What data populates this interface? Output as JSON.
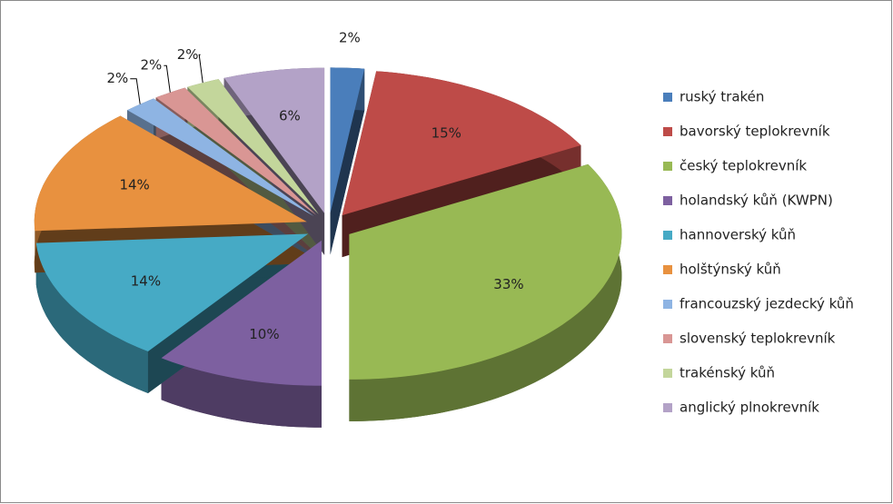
{
  "chart_data": {
    "type": "pie",
    "categories": [
      "ruský trakén",
      "bavorský teplokrevník",
      "český teplokrevník",
      "holandský kůň (KWPN)",
      "hannoverský kůň",
      "holštýnský kůň",
      "francouzský jezdecký kůň",
      "slovenský teplokrevník",
      "trakénský kůň",
      "anglický plnokrevník"
    ],
    "values": [
      2,
      15,
      33,
      10,
      14,
      14,
      2,
      2,
      2,
      6
    ],
    "value_labels": [
      "2%",
      "15%",
      "33%",
      "10%",
      "14%",
      "14%",
      "2%",
      "2%",
      "2%",
      "6%"
    ],
    "colors": [
      "#4a7ebb",
      "#be4b48",
      "#98b954",
      "#7d60a0",
      "#46aac5",
      "#e8913f",
      "#8eb4e3",
      "#d99694",
      "#c3d69b",
      "#b3a2c7"
    ],
    "legend": "right"
  }
}
